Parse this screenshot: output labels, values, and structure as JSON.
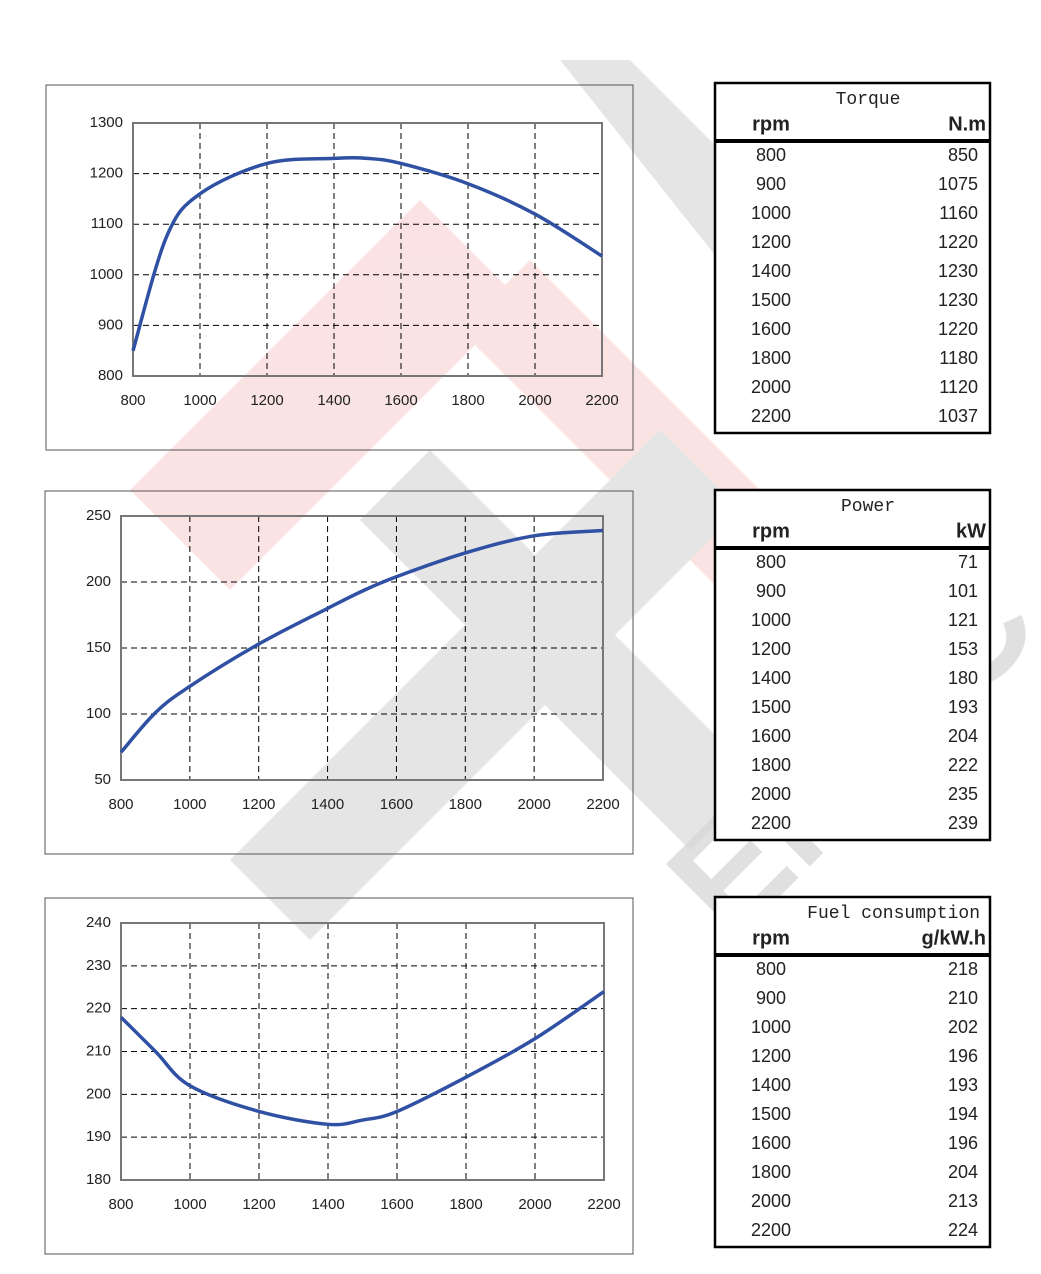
{
  "chart_data": [
    {
      "type": "line",
      "x": [
        800,
        900,
        1000,
        1200,
        1400,
        1500,
        1600,
        1800,
        2000,
        2200
      ],
      "values": [
        850,
        1075,
        1160,
        1220,
        1230,
        1230,
        1220,
        1180,
        1120,
        1037
      ],
      "color": "#2f50a3",
      "xlim": [
        800,
        2200
      ],
      "xticks": [
        800,
        1000,
        1200,
        1400,
        1600,
        1800,
        2000,
        2200
      ],
      "ylim": [
        800,
        1300
      ],
      "yticks": [
        800,
        900,
        1000,
        1100,
        1200,
        1300
      ],
      "grid": true
    },
    {
      "type": "line",
      "x": [
        800,
        900,
        1000,
        1200,
        1400,
        1500,
        1600,
        1800,
        2000,
        2200
      ],
      "values": [
        71,
        101,
        121,
        153,
        180,
        193,
        204,
        222,
        235,
        239
      ],
      "color": "#2f50a3",
      "xlim": [
        800,
        2200
      ],
      "xticks": [
        800,
        1000,
        1200,
        1400,
        1600,
        1800,
        2000,
        2200
      ],
      "ylim": [
        50,
        250
      ],
      "yticks": [
        50,
        100,
        150,
        200,
        250
      ],
      "grid": true
    },
    {
      "type": "line",
      "x": [
        800,
        900,
        1000,
        1200,
        1400,
        1500,
        1600,
        1800,
        2000,
        2200
      ],
      "values": [
        218,
        210,
        202,
        196,
        193,
        194,
        196,
        204,
        213,
        224
      ],
      "color": "#2f50a3",
      "xlim": [
        800,
        2200
      ],
      "xticks": [
        800,
        1000,
        1200,
        1400,
        1600,
        1800,
        2000,
        2200
      ],
      "ylim": [
        180,
        240
      ],
      "yticks": [
        180,
        190,
        200,
        210,
        220,
        230,
        240
      ],
      "grid": true
    }
  ],
  "tables": [
    {
      "title": "Torque",
      "columns": [
        "rpm",
        "N.m"
      ],
      "rows": [
        [
          800,
          850
        ],
        [
          900,
          1075
        ],
        [
          1000,
          1160
        ],
        [
          1200,
          1220
        ],
        [
          1400,
          1230
        ],
        [
          1500,
          1230
        ],
        [
          1600,
          1220
        ],
        [
          1800,
          1180
        ],
        [
          2000,
          1120
        ],
        [
          2200,
          1037
        ]
      ]
    },
    {
      "title": "Power",
      "columns": [
        "rpm",
        "kW"
      ],
      "rows": [
        [
          800,
          71
        ],
        [
          900,
          101
        ],
        [
          1000,
          121
        ],
        [
          1200,
          153
        ],
        [
          1400,
          180
        ],
        [
          1500,
          193
        ],
        [
          1600,
          204
        ],
        [
          1800,
          222
        ],
        [
          2000,
          235
        ],
        [
          2200,
          239
        ]
      ]
    },
    {
      "title": "Fuel consumption",
      "columns": [
        "rpm",
        "g/kW.h"
      ],
      "rows": [
        [
          800,
          218
        ],
        [
          900,
          210
        ],
        [
          1000,
          202
        ],
        [
          1200,
          196
        ],
        [
          1400,
          193
        ],
        [
          1500,
          194
        ],
        [
          1600,
          196
        ],
        [
          1800,
          204
        ],
        [
          2000,
          213
        ],
        [
          2200,
          224
        ]
      ]
    }
  ],
  "watermark": "EMAC"
}
